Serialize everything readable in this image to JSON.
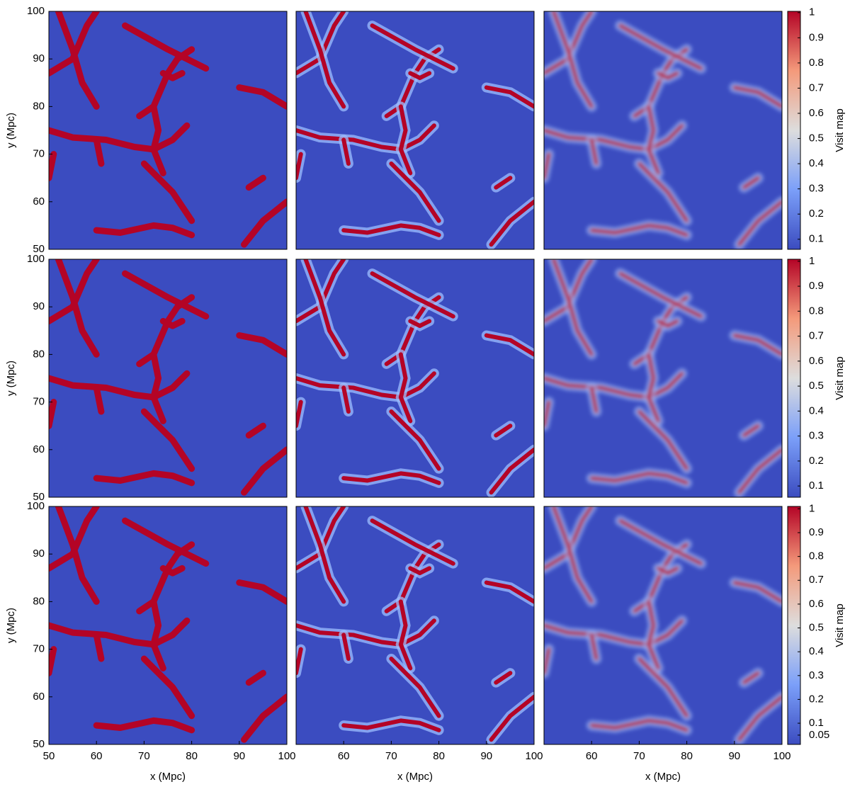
{
  "chart_data": [
    {
      "type": "heatmap",
      "xlim": [
        50,
        100
      ],
      "ylim": [
        50,
        100
      ],
      "ylabel": "y (Mpc)",
      "yticks": [
        50,
        60,
        70,
        80,
        90,
        100
      ]
    },
    {
      "type": "heatmap",
      "xlim": [
        50,
        100
      ],
      "ylim": [
        50,
        100
      ]
    },
    {
      "type": "heatmap",
      "xlim": [
        50,
        100
      ],
      "ylim": [
        50,
        100
      ],
      "colorbar": {
        "label": "Visit map",
        "clim": [
          0.06,
          1.005
        ],
        "ticks": [
          0.1,
          0.2,
          0.3,
          0.4,
          0.5,
          0.6,
          0.7,
          0.8,
          0.9,
          1
        ]
      }
    },
    {
      "type": "heatmap",
      "xlim": [
        50,
        100
      ],
      "ylim": [
        50,
        100
      ],
      "ylabel": "y (Mpc)",
      "yticks": [
        50,
        60,
        70,
        80,
        90,
        100
      ]
    },
    {
      "type": "heatmap",
      "xlim": [
        50,
        100
      ],
      "ylim": [
        50,
        100
      ]
    },
    {
      "type": "heatmap",
      "xlim": [
        50,
        100
      ],
      "ylim": [
        50,
        100
      ],
      "colorbar": {
        "label": "Visit map",
        "clim": [
          0.055,
          1.008
        ],
        "ticks": [
          0.1,
          0.2,
          0.3,
          0.4,
          0.5,
          0.6,
          0.7,
          0.8,
          0.9,
          1
        ]
      }
    },
    {
      "type": "heatmap",
      "xlim": [
        50,
        100
      ],
      "ylim": [
        50,
        100
      ],
      "ylabel": "y (Mpc)",
      "yticks": [
        50,
        60,
        70,
        80,
        90,
        100
      ],
      "xlabel": "x (Mpc)",
      "xticks": [
        50,
        60,
        70,
        80,
        90,
        100
      ]
    },
    {
      "type": "heatmap",
      "xlim": [
        50,
        100
      ],
      "ylim": [
        50,
        100
      ],
      "xlabel": "x (Mpc)",
      "xticks": [
        60,
        70,
        80,
        90,
        100
      ]
    },
    {
      "type": "heatmap",
      "xlim": [
        50,
        100
      ],
      "ylim": [
        50,
        100
      ],
      "xlabel": "x (Mpc)",
      "xticks": [
        60,
        70,
        80,
        90,
        100
      ],
      "colorbar": {
        "label": "Visit map",
        "clim": [
          0.011,
          1.01
        ],
        "ticks": [
          0.05,
          0.1,
          0.2,
          0.3,
          0.4,
          0.5,
          0.6,
          0.7,
          0.8,
          0.9,
          1
        ]
      }
    }
  ]
}
